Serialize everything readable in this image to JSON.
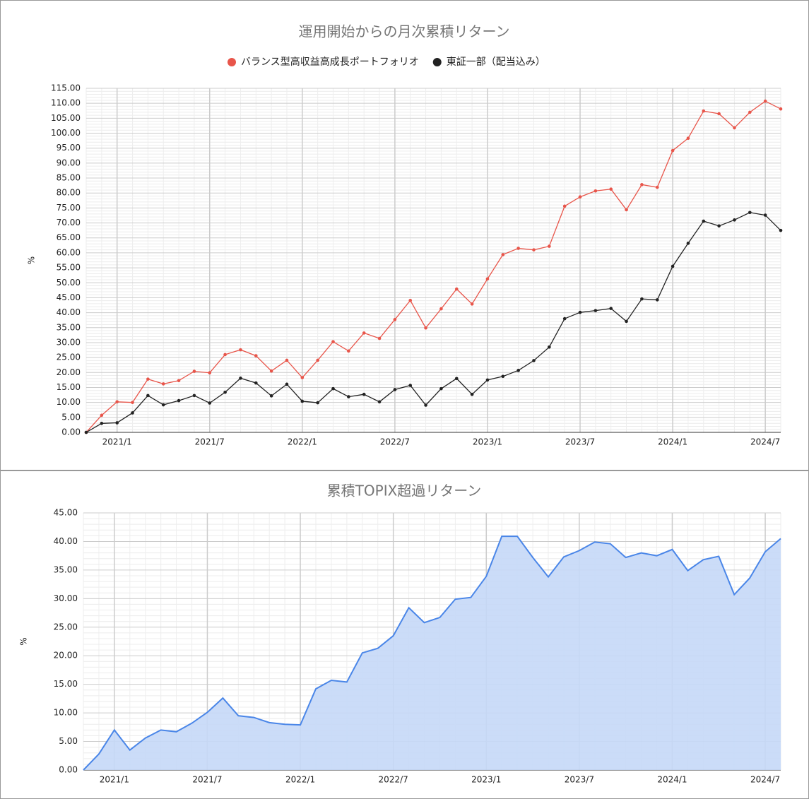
{
  "chart_data": [
    {
      "type": "line",
      "title": "運用開始からの月次累積リターン",
      "y_label": "%",
      "legend": "top",
      "grid": true,
      "categories": [
        null,
        null,
        "2021/1",
        null,
        null,
        null,
        null,
        null,
        "2021/7",
        null,
        null,
        null,
        null,
        null,
        "2022/1",
        null,
        null,
        null,
        null,
        null,
        "2022/7",
        null,
        null,
        null,
        null,
        null,
        "2023/1",
        null,
        null,
        null,
        null,
        null,
        "2023/7",
        null,
        null,
        null,
        null,
        null,
        "2024/1",
        null,
        null,
        null,
        null,
        null,
        "2024/7",
        null
      ],
      "series": [
        {
          "name": "バランス型高収益高成長ポートフォリオ",
          "color": "#e8554a",
          "values": [
            0,
            5.7,
            10.2,
            10.0,
            17.8,
            16.2,
            17.3,
            20.4,
            19.9,
            26.0,
            27.6,
            25.6,
            20.5,
            24.1,
            18.3,
            24.1,
            30.3,
            27.2,
            33.2,
            31.4,
            37.7,
            44.1,
            34.9,
            41.3,
            47.9,
            42.9,
            51.3,
            59.4,
            61.5,
            61.0,
            62.2,
            75.6,
            78.7,
            80.7,
            81.3,
            74.4,
            82.8,
            81.9,
            94.2,
            98.3,
            107.4,
            106.5,
            101.8,
            107.0,
            110.7,
            108.1
          ]
        },
        {
          "name": "東証一部（配当込み）",
          "color": "#222222",
          "values": [
            0,
            3.0,
            3.2,
            6.5,
            12.3,
            9.2,
            10.6,
            12.3,
            9.8,
            13.4,
            18.1,
            16.5,
            12.2,
            16.1,
            10.4,
            9.9,
            14.6,
            11.9,
            12.7,
            10.2,
            14.3,
            15.7,
            9.1,
            14.6,
            18.0,
            12.7,
            17.5,
            18.7,
            20.7,
            24.0,
            28.5,
            38.0,
            40.1,
            40.7,
            41.4,
            37.1,
            44.6,
            44.3,
            55.5,
            63.2,
            70.6,
            69.0,
            71.0,
            73.5,
            72.6,
            67.5
          ]
        }
      ],
      "ylim": [
        0,
        115
      ],
      "yticks": [
        {
          "value": 0,
          "label": "0.00"
        },
        {
          "value": 5,
          "label": "5.00"
        },
        {
          "value": 10,
          "label": "10.00"
        },
        {
          "value": 15,
          "label": "15.00"
        },
        {
          "value": 20,
          "label": "20.00"
        },
        {
          "value": 25,
          "label": "25.00"
        },
        {
          "value": 30,
          "label": "30.00"
        },
        {
          "value": 35,
          "label": "35.00"
        },
        {
          "value": 40,
          "label": "40.00"
        },
        {
          "value": 45,
          "label": "45.00"
        },
        {
          "value": 50,
          "label": "50.00"
        },
        {
          "value": 55,
          "label": "55.00"
        },
        {
          "value": 60,
          "label": "60.00"
        },
        {
          "value": 65,
          "label": "65.00"
        },
        {
          "value": 70,
          "label": "70.00"
        },
        {
          "value": 75,
          "label": "75.00"
        },
        {
          "value": 80,
          "label": "80.00"
        },
        {
          "value": 85,
          "label": "85.00"
        },
        {
          "value": 90,
          "label": "90.00"
        },
        {
          "value": 95,
          "label": "95.00"
        },
        {
          "value": 100,
          "label": "100.00"
        },
        {
          "value": 105,
          "label": "105.00"
        },
        {
          "value": 110,
          "label": "110.00"
        },
        {
          "value": 115,
          "label": "115.00"
        }
      ]
    },
    {
      "type": "area",
      "title": "累積TOPIX超過リターン",
      "y_label": "%",
      "grid": true,
      "color": "#4a86e8",
      "fill": "#c5d8f7",
      "categories": [
        null,
        null,
        "2021/1",
        null,
        null,
        null,
        null,
        null,
        "2021/7",
        null,
        null,
        null,
        null,
        null,
        "2022/1",
        null,
        null,
        null,
        null,
        null,
        "2022/7",
        null,
        null,
        null,
        null,
        null,
        "2023/1",
        null,
        null,
        null,
        null,
        null,
        "2023/7",
        null,
        null,
        null,
        null,
        null,
        "2024/1",
        null,
        null,
        null,
        null,
        null,
        "2024/7",
        null
      ],
      "values": [
        0,
        2.8,
        7.0,
        3.5,
        5.6,
        7.0,
        6.7,
        8.2,
        10.1,
        12.6,
        9.5,
        9.2,
        8.3,
        8.0,
        7.9,
        14.2,
        15.7,
        15.4,
        20.5,
        21.3,
        23.5,
        28.4,
        25.8,
        26.7,
        29.9,
        30.2,
        33.9,
        40.9,
        40.9,
        37.2,
        33.8,
        37.3,
        38.4,
        39.9,
        39.6,
        37.2,
        38.0,
        37.5,
        38.6,
        34.9,
        36.8,
        37.4,
        30.7,
        33.6,
        38.2,
        40.5
      ],
      "ylim": [
        0,
        45
      ],
      "yticks": [
        {
          "value": 0,
          "label": "0.00"
        },
        {
          "value": 5,
          "label": "5.00"
        },
        {
          "value": 10,
          "label": "10.00"
        },
        {
          "value": 15,
          "label": "15.00"
        },
        {
          "value": 20,
          "label": "20.00"
        },
        {
          "value": 25,
          "label": "25.00"
        },
        {
          "value": 30,
          "label": "30.00"
        },
        {
          "value": 35,
          "label": "35.00"
        },
        {
          "value": 40,
          "label": "40.00"
        },
        {
          "value": 45,
          "label": "45.00"
        }
      ]
    }
  ]
}
